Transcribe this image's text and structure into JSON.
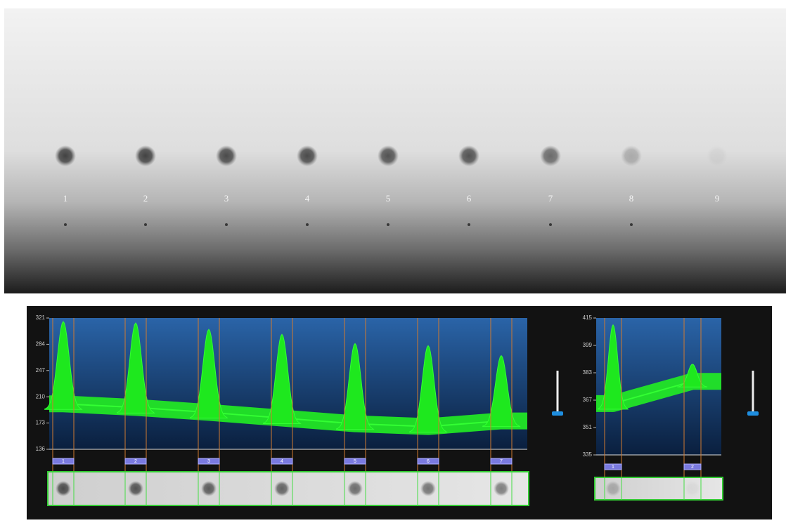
{
  "plate": {
    "spot_labels": [
      "1",
      "2",
      "3",
      "4",
      "5",
      "6",
      "7",
      "8",
      "9"
    ]
  },
  "profile_left": {
    "ylim": [
      136,
      321
    ],
    "yticks": [
      321,
      284,
      247,
      210,
      173,
      136
    ],
    "lanes": [
      "1",
      "2",
      "3",
      "4",
      "5",
      "6",
      "7"
    ],
    "peaks": [
      316,
      314,
      305,
      298,
      285,
      282,
      268
    ],
    "baseline": [
      200,
      195,
      188,
      180,
      172,
      168,
      176
    ]
  },
  "profile_right": {
    "ylim": [
      335,
      415
    ],
    "yticks": [
      415,
      399,
      383,
      367,
      351,
      335
    ],
    "lanes": [
      "1",
      "2"
    ],
    "peaks": [
      411,
      388
    ],
    "baseline": [
      365,
      378
    ]
  }
}
